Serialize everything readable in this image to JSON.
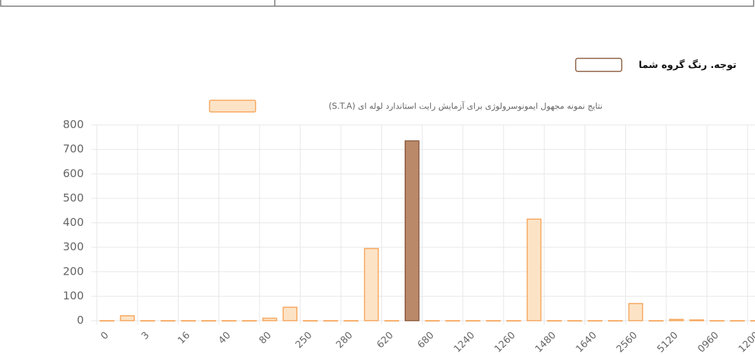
{
  "note": {
    "text": "توجه. رنگ گروه شما",
    "color": "#8a5a3c"
  },
  "chart_data": {
    "type": "bar",
    "series": [
      {
        "name": "نتایج نمونه مجهول ایمونوسرولوژی برای آزمایش رایت استاندارد لوله ای (S.T.A)",
        "color": "#fde3c6",
        "border_color": "#f5a55a",
        "values": [
          0,
          20,
          0,
          0,
          0,
          0,
          0,
          0,
          10,
          55,
          0,
          0,
          0,
          295,
          0,
          735,
          0,
          0,
          0,
          0,
          0,
          415,
          0,
          0,
          0,
          0,
          70,
          0,
          5,
          3,
          0,
          0,
          0,
          0
        ]
      }
    ],
    "categories": [
      "0",
      null,
      "3",
      null,
      "16",
      null,
      "40",
      null,
      "80",
      null,
      "250",
      null,
      "280",
      null,
      "620",
      null,
      "680",
      null,
      "1240",
      null,
      "1260",
      null,
      "1480",
      null,
      "1640",
      null,
      "2560",
      null,
      "5120",
      null,
      "0960",
      null,
      "1200",
      null
    ],
    "highlight": {
      "index": 15,
      "color": "#b9896a",
      "border_color": "#8a5a3c"
    },
    "ylim": [
      0,
      800
    ],
    "yticks": [
      0,
      100,
      200,
      300,
      400,
      500,
      600,
      700,
      800
    ],
    "grid": true
  }
}
